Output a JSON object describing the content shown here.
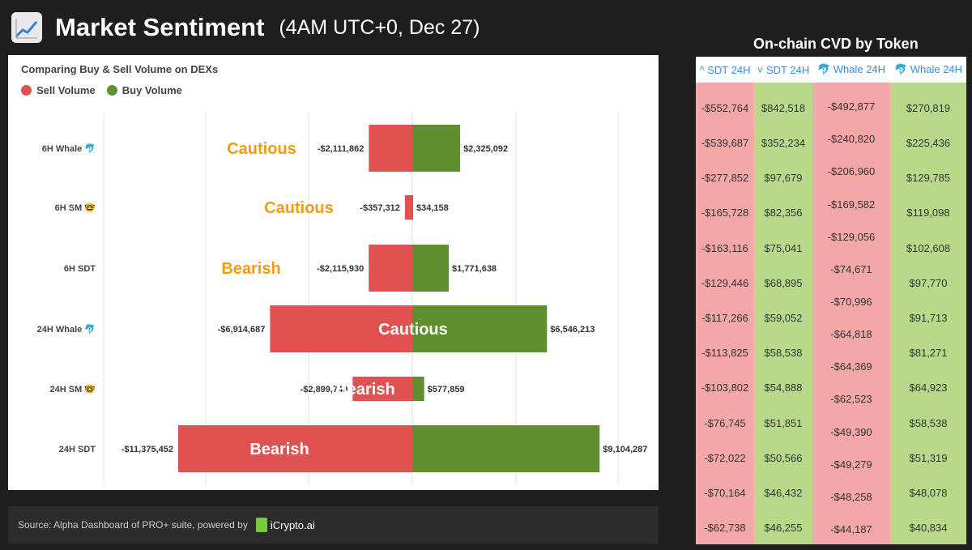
{
  "header": {
    "icon": "chart-upward-icon",
    "title": "Market Sentiment",
    "subtitle": "(4AM UTC+0, Dec 27)"
  },
  "chart_data": {
    "type": "bar",
    "orientation": "horizontal-diverging",
    "title": "Comparing Buy & Sell Volume on DEXs",
    "legend": [
      "Sell Volume",
      "Buy Volume"
    ],
    "legend_position": "top-left",
    "categories": [
      "6H Whale 🐬",
      "6H SM 🤓",
      "6H SDT",
      "24H Whale 🐬",
      "24H SM 🤓",
      "24H SDT"
    ],
    "series": [
      {
        "name": "Sell Volume",
        "color": "#e05252",
        "values": [
          -2111862,
          -357312,
          -2115930,
          -6914687,
          -2899749,
          -11375452
        ],
        "labels": [
          "-$2,111,862",
          "-$357,312",
          "-$2,115,930",
          "-$6,914,687",
          "-$2,899,749",
          "-$11,375,452"
        ]
      },
      {
        "name": "Buy Volume",
        "color": "#5f8f2f",
        "values": [
          2325092,
          34158,
          1771638,
          6546213,
          577859,
          9104287
        ],
        "labels": [
          "$2,325,092",
          "$34,158",
          "$1,771,638",
          "$6,546,213",
          "$577,859",
          "$9,104,287"
        ]
      }
    ],
    "annotations": [
      {
        "row": 0,
        "text": "Cautious",
        "style": "orange"
      },
      {
        "row": 1,
        "text": "Cautious",
        "style": "orange"
      },
      {
        "row": 2,
        "text": "Bearish",
        "style": "orange"
      },
      {
        "row": 3,
        "text": "Cautious",
        "style": "white"
      },
      {
        "row": 4,
        "text": "Bearish",
        "style": "white"
      },
      {
        "row": 5,
        "text": "Bearish",
        "style": "white"
      }
    ],
    "xlim": [
      -11375452,
      11375452
    ],
    "grid": true
  },
  "source": {
    "text": "Source: Alpha Dashboard of PRO+ suite, powered by",
    "logo": "iCrypto.ai"
  },
  "cvd": {
    "title": "On-chain CVD by Token",
    "columns": [
      {
        "header": "^ SDT 24H",
        "bg": "#f4a7a7",
        "values": [
          "-$552,764",
          "-$539,687",
          "-$277,852",
          "-$165,728",
          "-$163,116",
          "-$129,446",
          "-$117,266",
          "-$113,825",
          "-$103,802",
          "-$76,745",
          "-$72,022",
          "-$70,164",
          "-$62,738"
        ]
      },
      {
        "header": "˅ SDT 24H",
        "bg": "#b9d98a",
        "values": [
          "$842,518",
          "$352,234",
          "$97,679",
          "$82,356",
          "$75,041",
          "$68,895",
          "$59,052",
          "$58,538",
          "$54,888",
          "$51,851",
          "$50,566",
          "$46,432",
          "$46,255"
        ]
      },
      {
        "header": "🐬 Whale 24H",
        "bg": "#f4a7a7",
        "values": [
          "-$492,877",
          "-$240,820",
          "-$206,960",
          "-$169,582",
          "-$129,056",
          "-$74,671",
          "-$70,996",
          "-$64,818",
          "-$64,369",
          "-$62,523",
          "-$49,390",
          "-$49,279",
          "-$48,258",
          "-$44,187"
        ]
      },
      {
        "header": "🐬 Whale 24H",
        "bg": "#b9d98a",
        "values": [
          "$270,819",
          "$225,436",
          "$129,785",
          "$119,098",
          "$102,608",
          "$97,770",
          "$91,713",
          "$81,271",
          "$64,923",
          "$58,538",
          "$51,319",
          "$48,078",
          "$40,834"
        ]
      }
    ]
  }
}
